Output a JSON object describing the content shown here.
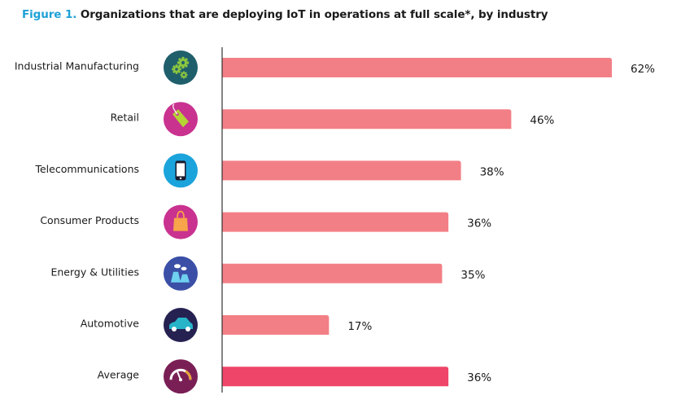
{
  "title": {
    "prefix": "Figure 1.",
    "text": "Organizations that are deploying IoT in operations at full scale*, by industry"
  },
  "chart_data": {
    "type": "bar",
    "orientation": "horizontal",
    "title": "Figure 1. Organizations that are deploying IoT in operations at full scale*, by industry",
    "categories": [
      "Industrial Manufacturing",
      "Retail",
      "Telecommunications",
      "Consumer Products",
      "Energy & Utilities",
      "Automotive",
      "Average"
    ],
    "values": [
      62,
      46,
      38,
      36,
      35,
      17,
      36
    ],
    "value_labels": [
      "62%",
      "46%",
      "38%",
      "36%",
      "35%",
      "17%",
      "36%"
    ],
    "xlim": [
      0,
      62
    ],
    "grid": false,
    "legend": "none",
    "icons": [
      {
        "name": "gears-icon",
        "bg": "#1f5f6b",
        "fg": "#8cc63f"
      },
      {
        "name": "price-tag-icon",
        "bg": "#c9328f",
        "fg": "#b5d334"
      },
      {
        "name": "smartphone-icon",
        "bg": "#1ba3dc",
        "fg": "#ffffff"
      },
      {
        "name": "shopping-bag-icon",
        "bg": "#c9328f",
        "fg": "#f7a44a"
      },
      {
        "name": "power-plant-icon",
        "bg": "#3b4fa6",
        "fg": "#6fd0f0"
      },
      {
        "name": "car-icon",
        "bg": "#252151",
        "fg": "#27b3c8"
      },
      {
        "name": "gauge-icon",
        "bg": "#7a1f55",
        "fg": "#e9a13a"
      }
    ],
    "colors": {
      "bar": "#f37f86",
      "average_bar": "#ee4568",
      "axis": "#333333",
      "title_accent": "#1da1d6"
    }
  }
}
